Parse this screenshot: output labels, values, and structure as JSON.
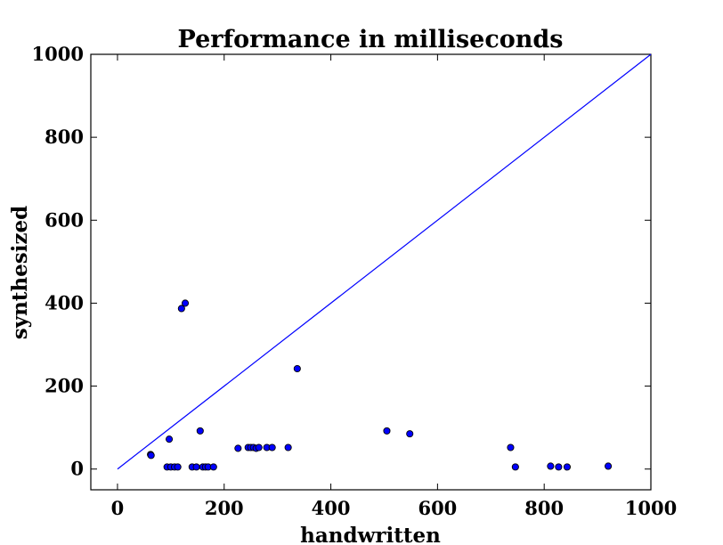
{
  "chart_data": {
    "type": "scatter",
    "title": "Performance in milliseconds",
    "xlabel": "handwritten",
    "ylabel": "synthesized",
    "xlim": [
      -50,
      1000
    ],
    "ylim": [
      -50,
      1000
    ],
    "x_ticks": [
      0,
      200,
      400,
      600,
      800,
      1000
    ],
    "y_ticks": [
      0,
      200,
      400,
      600,
      800,
      1000
    ],
    "grid": false,
    "reference_line": {
      "from": [
        0,
        0
      ],
      "to": [
        1000,
        1000
      ],
      "color": "#0000ff"
    },
    "marker_color": "#0000ff",
    "points": [
      {
        "x": 62,
        "y": 35
      },
      {
        "x": 63,
        "y": 33
      },
      {
        "x": 93,
        "y": 5
      },
      {
        "x": 97,
        "y": 72
      },
      {
        "x": 100,
        "y": 5
      },
      {
        "x": 107,
        "y": 5
      },
      {
        "x": 113,
        "y": 5
      },
      {
        "x": 120,
        "y": 387
      },
      {
        "x": 127,
        "y": 400
      },
      {
        "x": 140,
        "y": 5
      },
      {
        "x": 148,
        "y": 5
      },
      {
        "x": 155,
        "y": 92
      },
      {
        "x": 160,
        "y": 5
      },
      {
        "x": 165,
        "y": 5
      },
      {
        "x": 170,
        "y": 5
      },
      {
        "x": 180,
        "y": 5
      },
      {
        "x": 226,
        "y": 50
      },
      {
        "x": 245,
        "y": 52
      },
      {
        "x": 250,
        "y": 52
      },
      {
        "x": 255,
        "y": 52
      },
      {
        "x": 260,
        "y": 50
      },
      {
        "x": 265,
        "y": 52
      },
      {
        "x": 280,
        "y": 52
      },
      {
        "x": 290,
        "y": 52
      },
      {
        "x": 320,
        "y": 52
      },
      {
        "x": 337,
        "y": 242
      },
      {
        "x": 505,
        "y": 92
      },
      {
        "x": 548,
        "y": 85
      },
      {
        "x": 737,
        "y": 52
      },
      {
        "x": 746,
        "y": 5
      },
      {
        "x": 812,
        "y": 7
      },
      {
        "x": 827,
        "y": 5
      },
      {
        "x": 843,
        "y": 5
      },
      {
        "x": 920,
        "y": 7
      }
    ]
  }
}
